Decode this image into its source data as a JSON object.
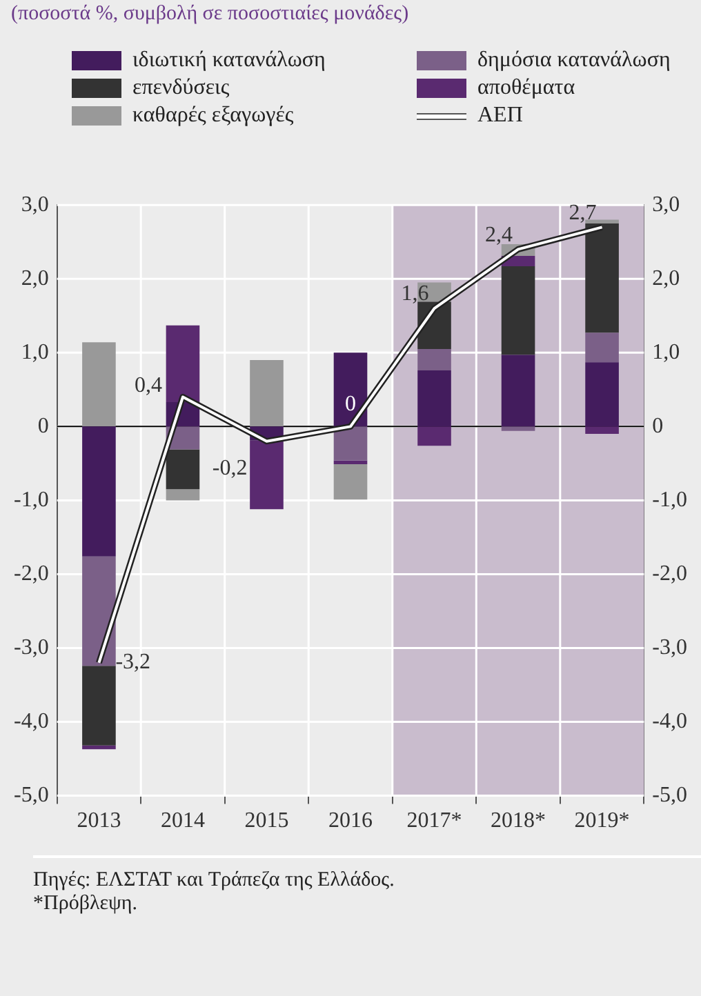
{
  "chart_data": {
    "type": "bar",
    "subtitle": "(ποσοστά %, συμβολή σε ποσοστιαίες μονάδες)",
    "categories": [
      "2013",
      "2014",
      "2015",
      "2016",
      "2017*",
      "2018*",
      "2019*"
    ],
    "stacked": true,
    "series": [
      {
        "name": "ιδιωτική κατανάλωση",
        "color": "#431c5d",
        "values": [
          -1.76,
          0.33,
          -0.19,
          1.0,
          0.76,
          0.97,
          0.87
        ]
      },
      {
        "name": "δημόσια κατανάλωση",
        "color": "#7b6088",
        "values": [
          -1.48,
          -0.31,
          null,
          -0.46,
          0.29,
          -0.06,
          0.4
        ]
      },
      {
        "name": "επενδύσεις",
        "color": "#333333",
        "values": [
          -1.08,
          -0.54,
          null,
          null,
          0.64,
          1.2,
          1.48
        ]
      },
      {
        "name": "αποθέματα",
        "color": "#5a2a70",
        "values": [
          -0.05,
          1.04,
          -0.93,
          -0.05,
          -0.26,
          0.14,
          -0.1
        ]
      },
      {
        "name": "καθαρές εξαγωγές",
        "color": "#999999",
        "values": [
          1.14,
          -0.15,
          0.9,
          -0.48,
          0.26,
          0.16,
          0.05
        ]
      },
      {
        "name": "ΑΕΠ",
        "type": "line",
        "color": "#ffffff",
        "values": [
          -3.2,
          0.4,
          -0.2,
          0,
          1.6,
          2.4,
          2.7
        ],
        "value_labels": [
          "-3,2",
          "0,4",
          "-0,2",
          "0",
          "1,6",
          "2,4",
          "2,7"
        ]
      }
    ],
    "ylim": [
      -5,
      3
    ],
    "yticks": [
      {
        "value": -5,
        "label": "-5,0"
      },
      {
        "value": -4,
        "label": "-4,0"
      },
      {
        "value": -3,
        "label": "-3,0"
      },
      {
        "value": -2,
        "label": "-2,0"
      },
      {
        "value": -1,
        "label": "-1,0"
      },
      0,
      {
        "value": 1,
        "label": "1,0"
      },
      {
        "value": 2,
        "label": "2,0"
      },
      {
        "value": 3,
        "label": "3,0"
      }
    ],
    "y2lim": [
      -5,
      3
    ],
    "y2ticks": [
      {
        "value": -5,
        "label": "-5,0"
      },
      {
        "value": -4,
        "label": "-4,0"
      },
      {
        "value": -3,
        "label": "-3,0"
      },
      {
        "value": -2,
        "label": "-2,0"
      },
      {
        "value": -1,
        "label": "-1,0"
      },
      0,
      {
        "value": 1,
        "label": "1,0"
      },
      {
        "value": 2,
        "label": "2,0"
      },
      {
        "value": 3,
        "label": "3,0"
      }
    ],
    "bands": [
      {
        "axis": "x",
        "from": "2017*",
        "to": "2019*",
        "color": "#c9bccd"
      }
    ],
    "grid": true,
    "legend": "top",
    "annotations": [
      "Πηγές: ΕΛΣΤΑΤ και Τράπεζα της Ελλάδος.",
      "*Πρόβλεψη."
    ]
  }
}
